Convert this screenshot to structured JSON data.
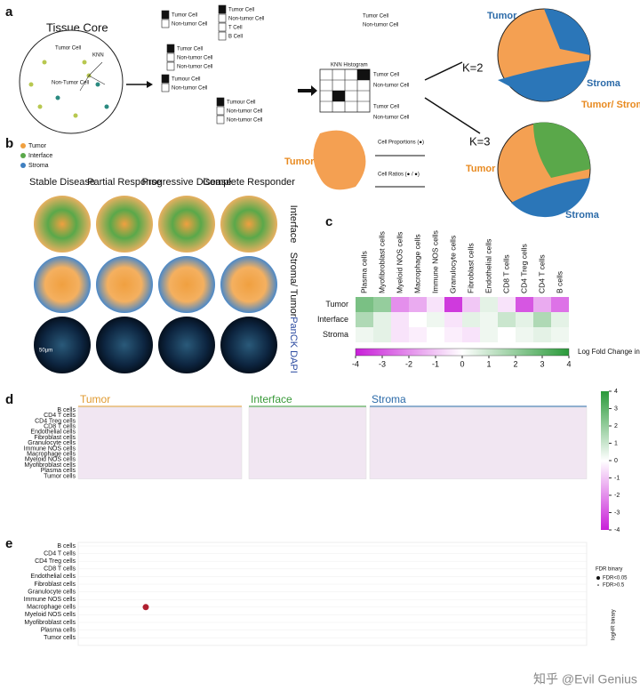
{
  "panel_a": {
    "label": "a",
    "title": "Tissue Core",
    "core_tumor": "Tumor Cell",
    "knn": "KNN",
    "core_non_tumor": "Non-Tumor Cell",
    "list1": [
      "Tumor Cell",
      "Non-tumor Cell"
    ],
    "list2": [
      "Tumor Cell",
      "Non-tumor Cell",
      "T Cell",
      "B Cell"
    ],
    "list3": [
      "Tumour Cell",
      "Non-tumor Cell"
    ],
    "list4": [
      "Tumor Cell",
      "Non-tumor Cell",
      "Non-tumor Cell"
    ],
    "list5": [
      "Tumour Cell",
      "Non-tumor Cell",
      "Non-tumor Cell"
    ],
    "hist_title": "KNN Histogram",
    "hist_rows": [
      "Tumor Cell",
      "Non-tumor Cell",
      "Tumor Cell",
      "Non-tumor Cell"
    ],
    "right_list": [
      "Tumor Cell",
      "Non-tumor Cell"
    ],
    "k2": "K=2",
    "k3": "K=3",
    "k2_tumor": "Tumor",
    "k2_stroma": "Stroma",
    "k3_interface": "Tumor/ Stroma Interface",
    "k3_tumor": "Tumor",
    "k3_stroma": "Stroma",
    "blob_tumor": "Tumor",
    "cell_proportions": "Cell Proportions (●)",
    "cell_ratios": "Cell Ratios (● / ●)"
  },
  "panel_b": {
    "label": "b",
    "legend": [
      {
        "name": "Tumor",
        "color": "#f0a040"
      },
      {
        "name": "Interface",
        "color": "#5aa84a"
      },
      {
        "name": "Stroma",
        "color": "#3f7fc0"
      }
    ],
    "columns": [
      "Stable Disease",
      "Partial Response",
      "Progressive Disease",
      "Complete Responder"
    ],
    "rows": [
      "Interface",
      "Stroma/ Tumor",
      "PanCK DAPI"
    ],
    "scale": "50µm"
  },
  "panel_c": {
    "label": "c",
    "columns": [
      "Plasma cells",
      "Myofibroblast cells",
      "Myeloid NOS cells",
      "Macrophage cells",
      "Immune NOS cells",
      "Granulocyte cells",
      "Fibroblast cells",
      "Endothelial cells",
      "CD8 T cells",
      "CD4 Treg cells",
      "CD4 T cells",
      "B cells"
    ],
    "rows": [
      "Tumor",
      "Interface",
      "Stroma"
    ],
    "values": [
      [
        2.5,
        2,
        -2,
        -1.5,
        -0.5,
        -3.5,
        -1,
        0.5,
        -0.5,
        -3,
        -1.5,
        -2.5
      ],
      [
        1.5,
        0.5,
        -0.5,
        0,
        0.3,
        -0.5,
        0.5,
        0.3,
        1,
        0.5,
        1.5,
        0.5
      ],
      [
        0.3,
        0.5,
        -0.5,
        -0.3,
        0,
        -0.3,
        -0.5,
        0.3,
        0,
        0.3,
        0.5,
        0.3
      ]
    ],
    "colorbar_lim": [
      -4,
      4
    ],
    "colorbar_ticks": [
      -4,
      -3,
      -2,
      -1,
      0,
      1,
      2,
      3,
      4
    ],
    "colorbar_title": "Log Fold Change in Median"
  },
  "panel_d": {
    "label": "d",
    "groups": [
      "Tumor",
      "Interface",
      "Stroma"
    ],
    "rows": [
      "B cells",
      "CD4 T cells",
      "CD4 Treg cells",
      "CD8 T cells",
      "Endothelial cells",
      "Fibroblast cells",
      "Granulocyte cells",
      "Immune NOS cells",
      "Macrophage cells",
      "Myeloid NOS cells",
      "Myofibroblast cells",
      "Plasma cells",
      "Tumor cells"
    ],
    "colorbar_lim": [
      -4,
      4
    ],
    "colorbar_ticks": [
      4,
      3,
      2,
      1,
      0,
      -1,
      -2,
      -3,
      -4
    ]
  },
  "panel_e": {
    "label": "e",
    "rows": [
      "B cells",
      "CD4 T cells",
      "CD4 Treg cells",
      "CD8 T cells",
      "Endothelial cells",
      "Fibroblast cells",
      "Granulocyte cells",
      "Immune NOS cells",
      "Macrophage cells",
      "Myeloid NOS cells",
      "Myofibroblast cells",
      "Plasma cells",
      "Tumor cells"
    ],
    "legend_title": "FDR binary",
    "legend_items": [
      "FDR<0.05",
      "FDR>0.5"
    ],
    "hr_title": "logHR binary"
  },
  "watermark": "知乎 @Evil Genius"
}
